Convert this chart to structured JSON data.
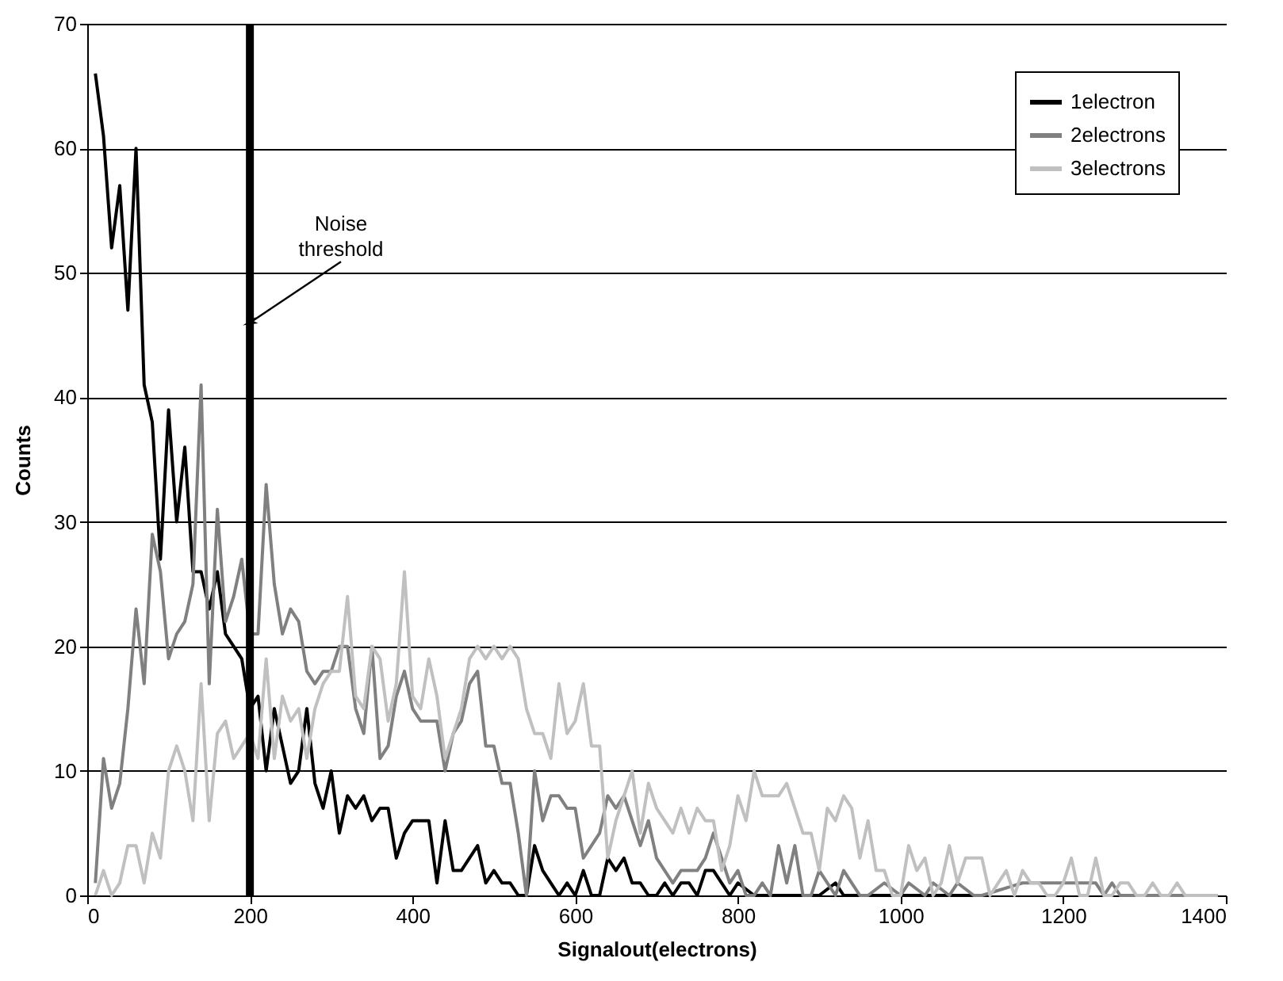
{
  "chart_data": {
    "type": "line",
    "xlabel": "Signalout(electrons)",
    "ylabel": "Counts",
    "xlim": [
      0,
      1400
    ],
    "xticks": [
      0,
      200,
      400,
      600,
      800,
      1000,
      1200,
      1400
    ],
    "ylim": [
      0,
      70
    ],
    "yticks": [
      0,
      10,
      20,
      30,
      40,
      50,
      60,
      70
    ],
    "grid": "y",
    "legend": "top right",
    "line_style": "solid",
    "marker": "none",
    "ref_lines": [
      {
        "axis": "x",
        "value": 200,
        "color": "#000000"
      }
    ],
    "annotations": [
      {
        "text": "Noise threshold",
        "x": 200,
        "y": 46
      }
    ],
    "series": [
      {
        "name": "1electron",
        "color": "#000000",
        "x": [
          10,
          20,
          30,
          40,
          50,
          60,
          70,
          80,
          90,
          100,
          110,
          120,
          130,
          140,
          150,
          160,
          170,
          180,
          190,
          200,
          210,
          220,
          230,
          240,
          250,
          260,
          270,
          280,
          290,
          300,
          310,
          320,
          330,
          340,
          350,
          360,
          370,
          380,
          390,
          400,
          410,
          420,
          430,
          440,
          450,
          460,
          470,
          480,
          490,
          500,
          510,
          520,
          530,
          540,
          550,
          560,
          570,
          580,
          590,
          600,
          610,
          620,
          630,
          640,
          650,
          660,
          670,
          680,
          690,
          700,
          710,
          720,
          730,
          740,
          750,
          760,
          770,
          780,
          790,
          800,
          820,
          850,
          880,
          900,
          920,
          930,
          960,
          1000,
          1100
        ],
        "values": [
          66,
          61,
          52,
          57,
          47,
          60,
          41,
          38,
          27,
          39,
          30,
          36,
          26,
          26,
          23,
          26,
          21,
          20,
          19,
          15,
          16,
          10,
          15,
          12,
          9,
          10,
          15,
          9,
          7,
          10,
          5,
          8,
          7,
          8,
          6,
          7,
          7,
          3,
          5,
          6,
          6,
          6,
          1,
          6,
          2,
          2,
          3,
          4,
          1,
          2,
          1,
          1,
          0,
          0,
          4,
          2,
          1,
          0,
          1,
          0,
          2,
          0,
          0,
          3,
          2,
          3,
          1,
          1,
          0,
          0,
          1,
          0,
          1,
          1,
          0,
          2,
          2,
          1,
          0,
          1,
          0,
          0,
          0,
          0,
          1,
          0,
          0,
          0,
          0
        ]
      },
      {
        "name": "2electrons",
        "color": "#808080",
        "x": [
          10,
          20,
          30,
          40,
          50,
          60,
          70,
          80,
          90,
          100,
          110,
          120,
          130,
          140,
          150,
          160,
          170,
          180,
          190,
          200,
          210,
          220,
          230,
          240,
          250,
          260,
          270,
          280,
          290,
          300,
          310,
          320,
          330,
          340,
          350,
          360,
          370,
          380,
          390,
          400,
          410,
          420,
          430,
          440,
          450,
          460,
          470,
          480,
          490,
          500,
          510,
          520,
          530,
          540,
          550,
          560,
          570,
          580,
          590,
          600,
          610,
          620,
          630,
          640,
          650,
          660,
          670,
          680,
          690,
          700,
          710,
          720,
          730,
          740,
          750,
          760,
          770,
          780,
          790,
          800,
          810,
          820,
          830,
          840,
          850,
          860,
          870,
          880,
          890,
          900,
          920,
          930,
          940,
          950,
          960,
          980,
          1000,
          1010,
          1030,
          1040,
          1060,
          1070,
          1090,
          1100,
          1150,
          1240,
          1250,
          1260,
          1270,
          1280,
          1390
        ],
        "values": [
          1,
          11,
          7,
          9,
          15,
          23,
          17,
          29,
          26,
          19,
          21,
          22,
          25,
          41,
          17,
          31,
          22,
          24,
          27,
          21,
          21,
          33,
          25,
          21,
          23,
          22,
          18,
          17,
          18,
          18,
          20,
          20,
          15,
          13,
          20,
          11,
          12,
          16,
          18,
          15,
          14,
          14,
          14,
          10,
          13,
          14,
          17,
          18,
          12,
          12,
          9,
          9,
          5,
          0,
          10,
          6,
          8,
          8,
          7,
          7,
          3,
          4,
          5,
          8,
          7,
          8,
          6,
          4,
          6,
          3,
          2,
          1,
          2,
          2,
          2,
          3,
          5,
          3,
          1,
          2,
          0,
          0,
          1,
          0,
          4,
          1,
          4,
          0,
          0,
          2,
          0,
          2,
          1,
          0,
          0,
          1,
          0,
          1,
          0,
          1,
          0,
          1,
          0,
          0,
          1,
          1,
          0,
          1,
          0,
          0,
          0
        ]
      },
      {
        "name": "3electrons",
        "color": "#c0c0c0",
        "x": [
          10,
          20,
          30,
          40,
          50,
          60,
          70,
          80,
          90,
          100,
          110,
          120,
          130,
          140,
          150,
          160,
          170,
          180,
          190,
          200,
          210,
          220,
          230,
          240,
          250,
          260,
          270,
          280,
          290,
          300,
          310,
          320,
          330,
          340,
          350,
          360,
          370,
          380,
          390,
          400,
          410,
          420,
          430,
          440,
          450,
          460,
          470,
          480,
          490,
          500,
          510,
          520,
          530,
          540,
          550,
          560,
          570,
          580,
          590,
          600,
          610,
          620,
          630,
          640,
          650,
          660,
          670,
          680,
          690,
          700,
          710,
          720,
          730,
          740,
          750,
          760,
          770,
          780,
          790,
          800,
          810,
          820,
          830,
          840,
          850,
          860,
          870,
          880,
          890,
          900,
          910,
          920,
          930,
          940,
          950,
          960,
          970,
          980,
          990,
          1000,
          1010,
          1020,
          1030,
          1040,
          1050,
          1060,
          1070,
          1080,
          1090,
          1100,
          1110,
          1120,
          1130,
          1140,
          1150,
          1160,
          1170,
          1180,
          1190,
          1200,
          1210,
          1220,
          1230,
          1240,
          1250,
          1260,
          1270,
          1280,
          1290,
          1300,
          1310,
          1320,
          1330,
          1340,
          1350,
          1390
        ],
        "values": [
          0,
          2,
          0,
          1,
          4,
          4,
          1,
          5,
          3,
          10,
          12,
          10,
          6,
          17,
          6,
          13,
          14,
          11,
          12,
          13,
          11,
          19,
          11,
          16,
          14,
          15,
          11,
          15,
          17,
          18,
          18,
          24,
          16,
          15,
          20,
          19,
          14,
          17,
          26,
          16,
          15,
          19,
          16,
          11,
          13,
          15,
          19,
          20,
          19,
          20,
          19,
          20,
          19,
          15,
          13,
          13,
          11,
          17,
          13,
          14,
          17,
          12,
          12,
          3,
          6,
          8,
          10,
          5,
          9,
          7,
          6,
          5,
          7,
          5,
          7,
          6,
          6,
          2,
          4,
          8,
          6,
          10,
          8,
          8,
          8,
          9,
          7,
          5,
          5,
          2,
          7,
          6,
          8,
          7,
          3,
          6,
          2,
          2,
          0,
          0,
          4,
          2,
          3,
          0,
          1,
          4,
          1,
          3,
          3,
          3,
          0,
          1,
          2,
          0,
          2,
          1,
          1,
          0,
          0,
          1,
          3,
          0,
          0,
          3,
          0,
          0,
          1,
          1,
          0,
          0,
          1,
          0,
          0,
          1,
          0,
          0
        ]
      }
    ]
  }
}
